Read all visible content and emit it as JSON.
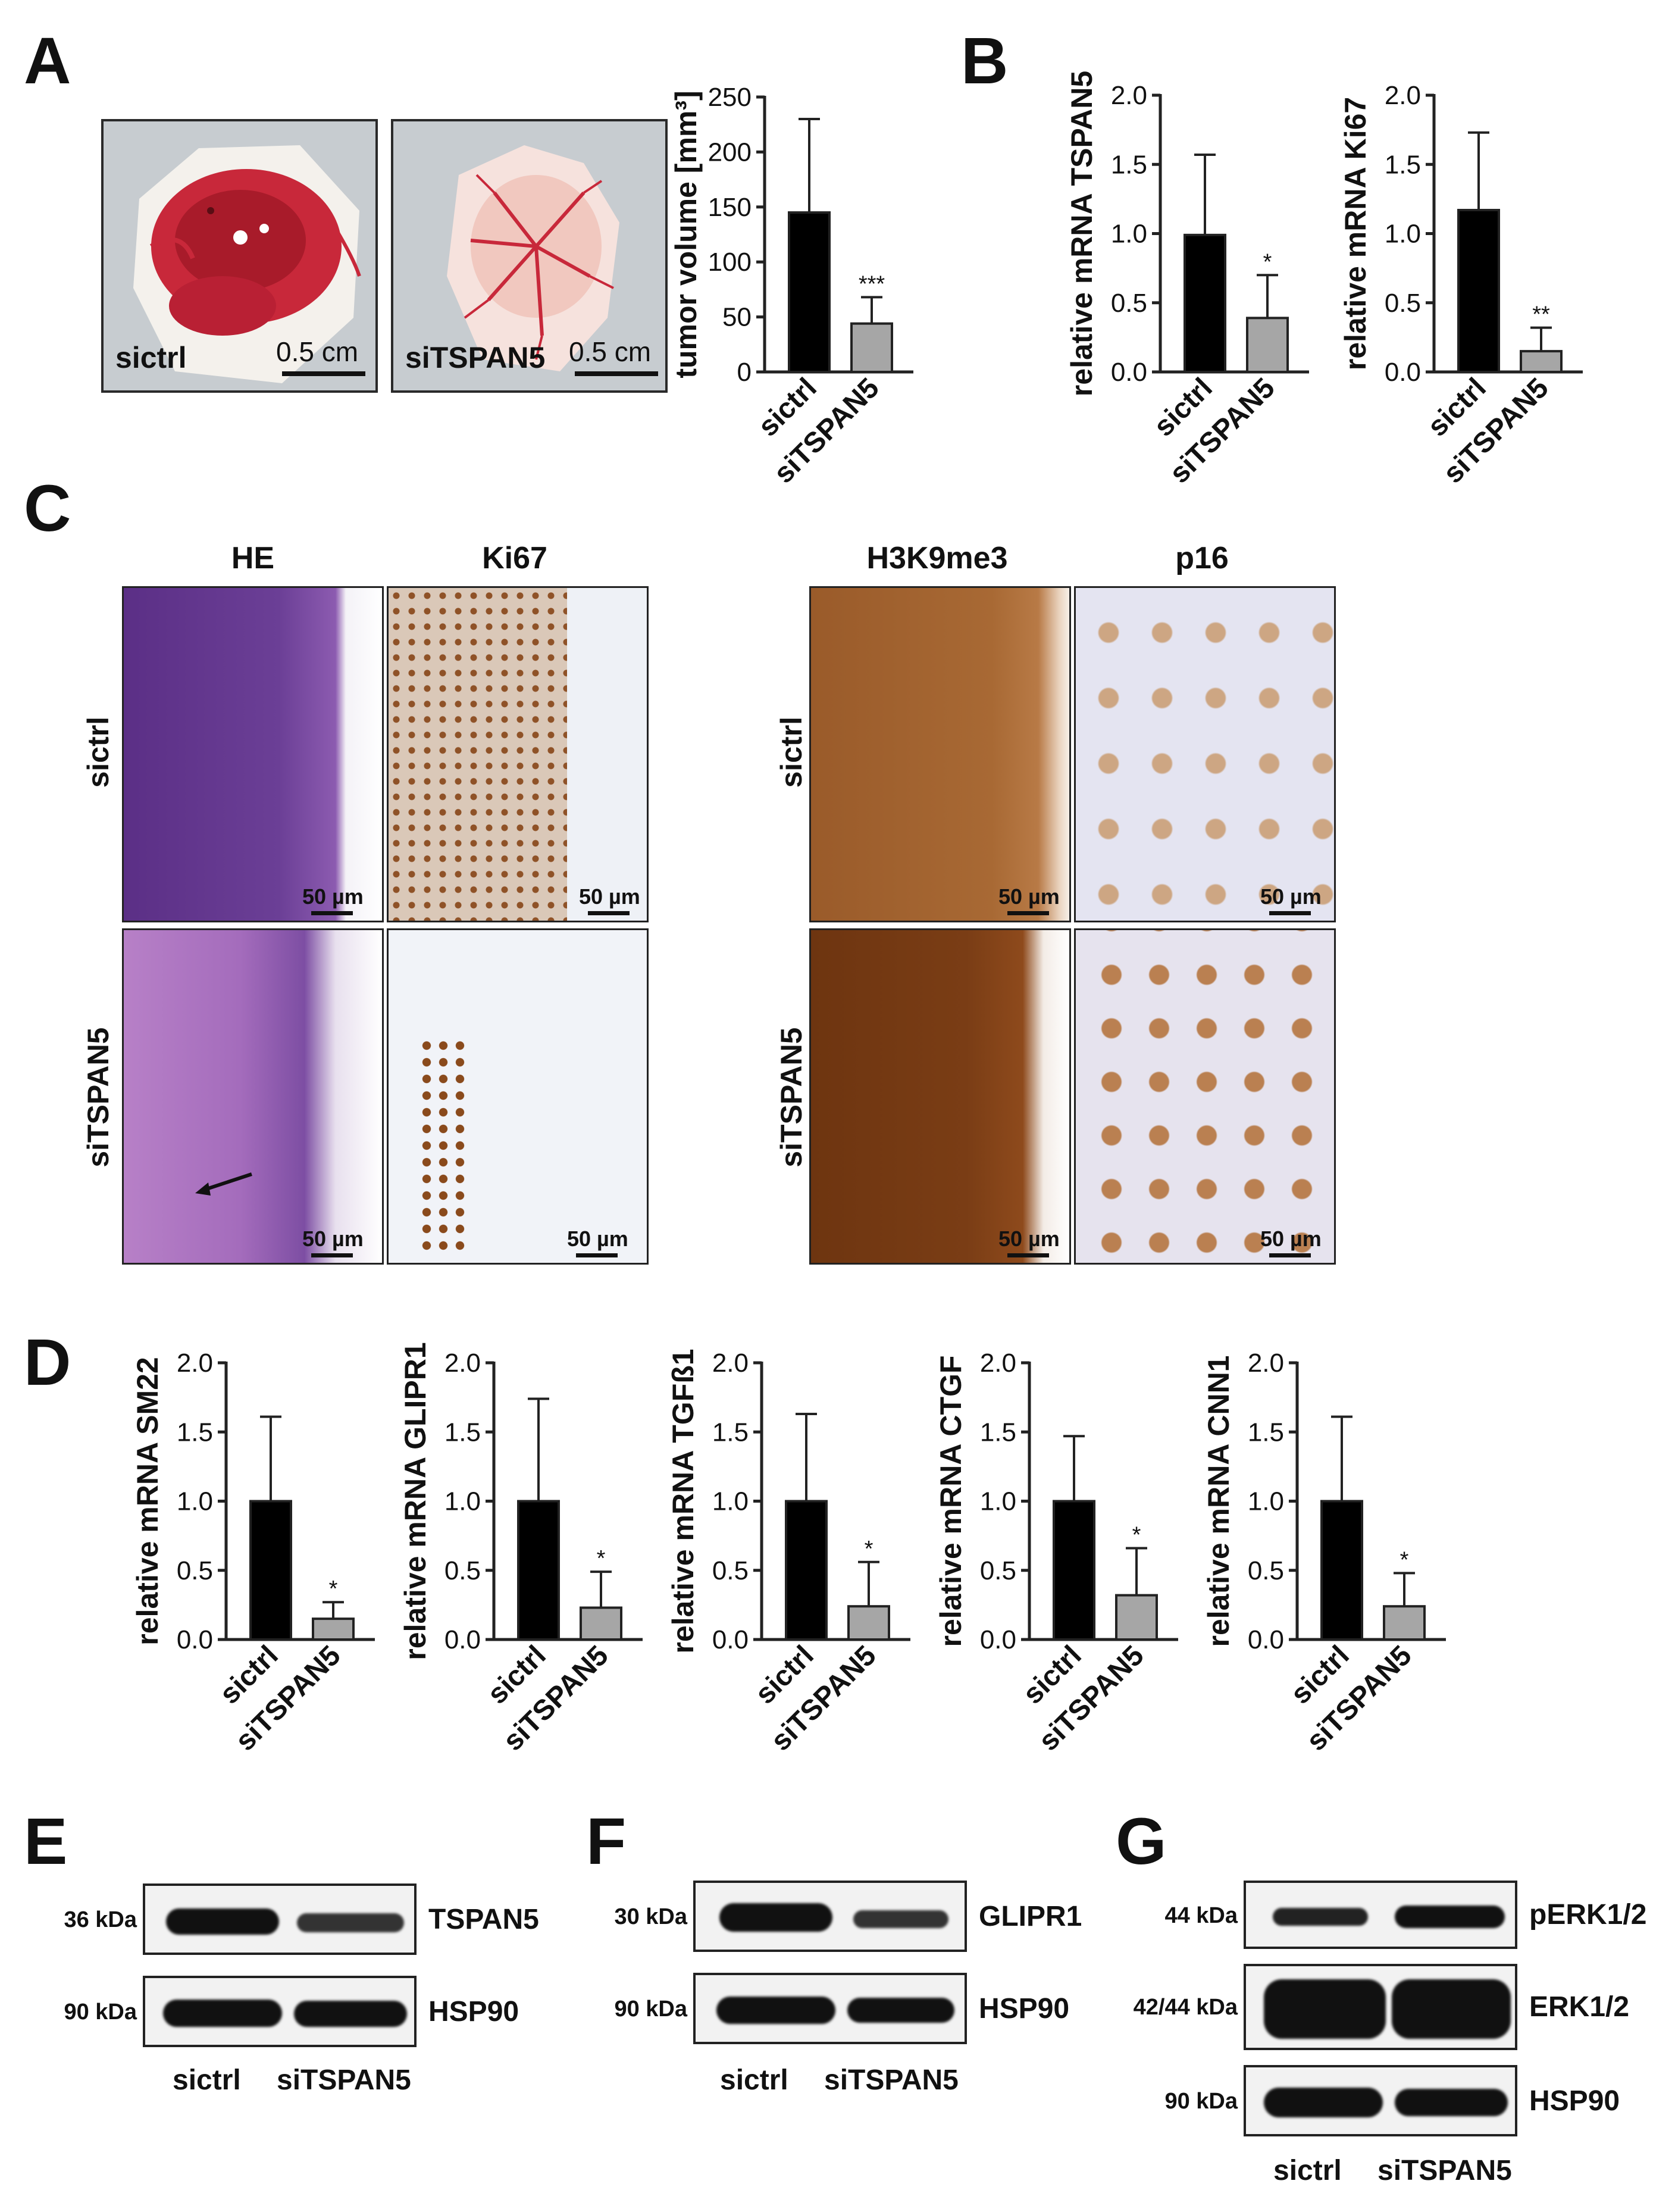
{
  "panels": {
    "A": "A",
    "B": "B",
    "C": "C",
    "D": "D",
    "E": "E",
    "F": "F",
    "G": "G"
  },
  "panel_a": {
    "photos": [
      {
        "caption": "sictrl",
        "scale": "0.5 cm"
      },
      {
        "caption": "siTSPAN5",
        "scale": "0.5 cm"
      }
    ]
  },
  "panel_c": {
    "columns": [
      "HE",
      "Ki67",
      "H3K9me3",
      "p16"
    ],
    "rows": [
      "sictrl",
      "siTSPAN5"
    ],
    "scale": "50 µm"
  },
  "blots": {
    "E": {
      "left_labels": [
        "36 kDa",
        "90 kDa"
      ],
      "right_labels": [
        "TSPAN5",
        "HSP90"
      ],
      "lanes": [
        "sictrl",
        "siTSPAN5"
      ]
    },
    "F": {
      "left_labels": [
        "30 kDa",
        "90 kDa"
      ],
      "right_labels": [
        "GLIPR1",
        "HSP90"
      ],
      "lanes": [
        "sictrl",
        "siTSPAN5"
      ]
    },
    "G": {
      "left_labels": [
        "44 kDa",
        "42/44 kDa",
        "90 kDa"
      ],
      "right_labels": [
        "pERK1/2",
        "ERK1/2",
        "HSP90"
      ],
      "lanes": [
        "sictrl",
        "siTSPAN5"
      ]
    }
  },
  "colors": {
    "sictrl_bar": "#000000",
    "siTSPAN5_bar": "#a6a6a6",
    "he_stain": "#6a3f8c",
    "dab_stain": "#8a4a1c",
    "tissue_red": "#c8283a"
  },
  "chart_data": [
    {
      "type": "bar",
      "panel": "A",
      "categories": [
        "sictrl",
        "siTSPAN5"
      ],
      "values": [
        145,
        44
      ],
      "errors": [
        85,
        24
      ],
      "stars": [
        "",
        "***"
      ],
      "ylabel": "tumor volume [mm³]",
      "ylim": [
        0,
        250
      ],
      "yticks": [
        "0",
        "50",
        "100",
        "150",
        "200",
        "250"
      ]
    },
    {
      "type": "bar",
      "panel": "B",
      "categories": [
        "sictrl",
        "siTSPAN5"
      ],
      "values": [
        0.99,
        0.39
      ],
      "errors": [
        0.58,
        0.31
      ],
      "stars": [
        "",
        "*"
      ],
      "ylabel": "relative mRNA TSPAN5",
      "ylim": [
        0,
        2.0
      ],
      "yticks": [
        "0.0",
        "0.5",
        "1.0",
        "1.5",
        "2.0"
      ]
    },
    {
      "type": "bar",
      "panel": "B",
      "categories": [
        "sictrl",
        "siTSPAN5"
      ],
      "values": [
        1.17,
        0.15
      ],
      "errors": [
        0.56,
        0.17
      ],
      "stars": [
        "",
        "**"
      ],
      "ylabel": "relative mRNA Ki67",
      "ylim": [
        0,
        2.0
      ],
      "yticks": [
        "0.0",
        "0.5",
        "1.0",
        "1.5",
        "2.0"
      ]
    },
    {
      "type": "bar",
      "panel": "D",
      "categories": [
        "sictrl",
        "siTSPAN5"
      ],
      "values": [
        1.0,
        0.15
      ],
      "errors": [
        0.61,
        0.12
      ],
      "stars": [
        "",
        "*"
      ],
      "ylabel": "relative mRNA SM22",
      "ylim": [
        0,
        2.0
      ],
      "yticks": [
        "0.0",
        "0.5",
        "1.0",
        "1.5",
        "2.0"
      ]
    },
    {
      "type": "bar",
      "panel": "D",
      "categories": [
        "sictrl",
        "siTSPAN5"
      ],
      "values": [
        1.0,
        0.23
      ],
      "errors": [
        0.74,
        0.26
      ],
      "stars": [
        "",
        "*"
      ],
      "ylabel": "relative mRNA GLIPR1",
      "ylim": [
        0,
        2.0
      ],
      "yticks": [
        "0.0",
        "0.5",
        "1.0",
        "1.5",
        "2.0"
      ]
    },
    {
      "type": "bar",
      "panel": "D",
      "categories": [
        "sictrl",
        "siTSPAN5"
      ],
      "values": [
        1.0,
        0.24
      ],
      "errors": [
        0.63,
        0.32
      ],
      "stars": [
        "",
        "*"
      ],
      "ylabel": "relative mRNA TGFß1",
      "ylim": [
        0,
        2.0
      ],
      "yticks": [
        "0.0",
        "0.5",
        "1.0",
        "1.5",
        "2.0"
      ]
    },
    {
      "type": "bar",
      "panel": "D",
      "categories": [
        "sictrl",
        "siTSPAN5"
      ],
      "values": [
        1.0,
        0.32
      ],
      "errors": [
        0.47,
        0.34
      ],
      "stars": [
        "",
        "*"
      ],
      "ylabel": "relative mRNA CTGF",
      "ylim": [
        0,
        2.0
      ],
      "yticks": [
        "0.0",
        "0.5",
        "1.0",
        "1.5",
        "2.0"
      ]
    },
    {
      "type": "bar",
      "panel": "D",
      "categories": [
        "sictrl",
        "siTSPAN5"
      ],
      "values": [
        1.0,
        0.24
      ],
      "errors": [
        0.61,
        0.24
      ],
      "stars": [
        "",
        "*"
      ],
      "ylabel": "relative mRNA CNN1",
      "ylim": [
        0,
        2.0
      ],
      "yticks": [
        "0.0",
        "0.5",
        "1.0",
        "1.5",
        "2.0"
      ]
    }
  ]
}
